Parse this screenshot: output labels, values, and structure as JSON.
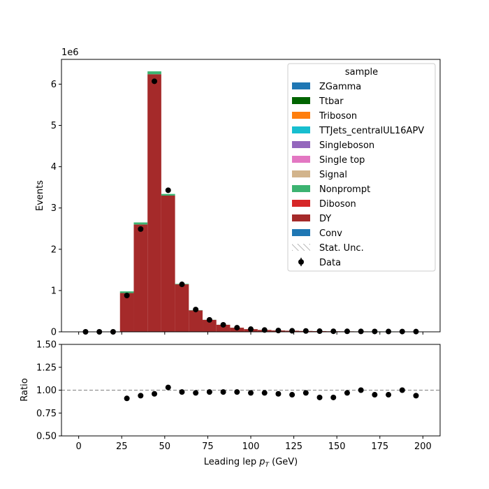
{
  "chart_data": [
    {
      "type": "bar",
      "subtype": "stacked-histogram",
      "ylabel": "Events",
      "offset_text": "1e6",
      "xlim": [
        -10,
        210
      ],
      "ylim": [
        0,
        6.6
      ],
      "yticks": [
        0,
        1,
        2,
        3,
        4,
        5,
        6
      ],
      "bin_edges": [
        0,
        8,
        16,
        24,
        32,
        40,
        48,
        56,
        64,
        72,
        80,
        88,
        96,
        104,
        112,
        120,
        128,
        136,
        144,
        152,
        160,
        168,
        176,
        184,
        192,
        200
      ],
      "series": [
        {
          "name": "DY",
          "color": "#a52a2a",
          "values": [
            0,
            0,
            0,
            0.94,
            2.6,
            6.24,
            3.3,
            1.15,
            0.52,
            0.29,
            0.17,
            0.1,
            0.065,
            0.045,
            0.033,
            0.026,
            0.021,
            0.017,
            0.014,
            0.012,
            0.01,
            0.009,
            0.008,
            0.007,
            0.006
          ]
        },
        {
          "name": "Nonprompt",
          "color": "#3cb371",
          "values": [
            0,
            0,
            0,
            0.04,
            0.05,
            0.07,
            0.04,
            0.012,
            0.006,
            0.003,
            0.002,
            0.001,
            0.001,
            0.001,
            0.001,
            0.001,
            0.001,
            0.001,
            0.001,
            0.001,
            0.001,
            0.001,
            0.001,
            0.001,
            0.001
          ]
        }
      ],
      "data_points": {
        "name": "Data",
        "x": [
          4,
          12,
          20,
          28,
          36,
          44,
          52,
          60,
          68,
          76,
          84,
          92,
          100,
          108,
          116,
          124,
          132,
          140,
          148,
          156,
          164,
          172,
          180,
          188,
          196
        ],
        "y": [
          0,
          0,
          0,
          0.88,
          2.49,
          6.07,
          3.43,
          1.15,
          0.54,
          0.29,
          0.17,
          0.1,
          0.065,
          0.044,
          0.032,
          0.025,
          0.021,
          0.016,
          0.013,
          0.012,
          0.01,
          0.009,
          0.008,
          0.007,
          0.006
        ]
      },
      "legend": {
        "title": "sample",
        "placement": "upper right",
        "entries": [
          {
            "label": "ZGamma",
            "color": "#1f77b4",
            "kind": "patch"
          },
          {
            "label": "Ttbar",
            "color": "#006400",
            "kind": "patch"
          },
          {
            "label": "Triboson",
            "color": "#ff7f0e",
            "kind": "patch"
          },
          {
            "label": "TTJets_centralUL16APV",
            "color": "#17becf",
            "kind": "patch"
          },
          {
            "label": "Singleboson",
            "color": "#9467bd",
            "kind": "patch"
          },
          {
            "label": "Single top",
            "color": "#e377c2",
            "kind": "patch"
          },
          {
            "label": "Signal",
            "color": "#d2b48c",
            "kind": "patch"
          },
          {
            "label": "Nonprompt",
            "color": "#3cb371",
            "kind": "patch"
          },
          {
            "label": "Diboson",
            "color": "#d62728",
            "kind": "patch"
          },
          {
            "label": "DY",
            "color": "#a52a2a",
            "kind": "patch"
          },
          {
            "label": "Conv",
            "color": "#1f77b4",
            "kind": "patch"
          },
          {
            "label": "Stat. Unc.",
            "color": "#808080",
            "kind": "hatch"
          },
          {
            "label": "Data",
            "color": "#000000",
            "kind": "marker"
          }
        ]
      }
    },
    {
      "type": "scatter",
      "ylabel": "Ratio",
      "xlabel": "Leading lep",
      "xlabel_symbol": "p",
      "xlabel_subscript": "T",
      "xlabel_unit": "(GeV)",
      "xlim": [
        -10,
        210
      ],
      "ylim": [
        0.5,
        1.5
      ],
      "xticks": [
        0,
        25,
        50,
        75,
        100,
        125,
        150,
        175,
        200
      ],
      "yticks": [
        0.5,
        0.75,
        1.0,
        1.25,
        1.5
      ],
      "ytick_labels": [
        "0.50",
        "0.75",
        "1.00",
        "1.25",
        "1.50"
      ],
      "reference_line": 1.0,
      "x": [
        28,
        36,
        44,
        52,
        60,
        68,
        76,
        84,
        92,
        100,
        108,
        116,
        124,
        132,
        140,
        148,
        156,
        164,
        172,
        180,
        188,
        196
      ],
      "y": [
        0.91,
        0.94,
        0.96,
        1.03,
        0.98,
        0.97,
        0.98,
        0.98,
        0.98,
        0.97,
        0.97,
        0.96,
        0.95,
        0.97,
        0.92,
        0.92,
        0.97,
        1.0,
        0.95,
        0.95,
        1.0,
        0.94
      ]
    }
  ]
}
